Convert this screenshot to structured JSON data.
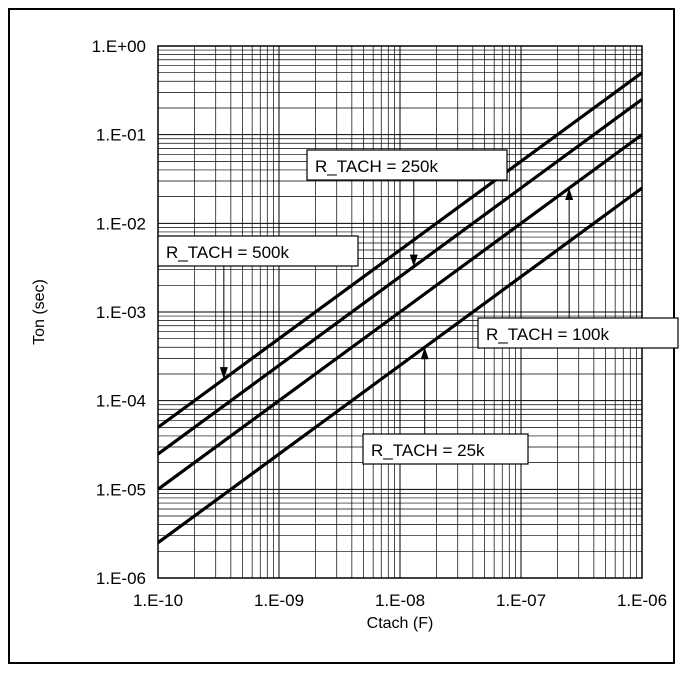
{
  "chart_data": {
    "type": "line",
    "title": "",
    "xlabel": "Ctach (F)",
    "ylabel": "Ton (sec)",
    "xscale": "log",
    "yscale": "log",
    "xlim": [
      1e-10,
      1e-06
    ],
    "ylim": [
      1e-06,
      1
    ],
    "grid": true,
    "x_tick_labels": [
      "1.E-10",
      "1.E-09",
      "1.E-08",
      "1.E-07",
      "1.E-06"
    ],
    "y_tick_labels": [
      "1.E-06",
      "1.E-05",
      "1.E-04",
      "1.E-03",
      "1.E-02",
      "1.E-01",
      "1.E+00"
    ],
    "series": [
      {
        "name": "R_TACH = 500k",
        "x": [
          1e-10,
          1e-06
        ],
        "y": [
          5e-05,
          0.5
        ]
      },
      {
        "name": "R_TACH = 250k",
        "x": [
          1e-10,
          1e-06
        ],
        "y": [
          2.5e-05,
          0.25
        ]
      },
      {
        "name": "R_TACH = 100k",
        "x": [
          1e-10,
          1e-06
        ],
        "y": [
          1e-05,
          0.1
        ]
      },
      {
        "name": "R_TACH = 25k",
        "x": [
          1e-10,
          1e-06
        ],
        "y": [
          2.5e-06,
          0.025
        ]
      }
    ],
    "annotations": [
      {
        "text": "R_TACH = 500k",
        "series": 0,
        "arrow_x": 3.5e-10
      },
      {
        "text": "R_TACH = 250k",
        "series": 1,
        "arrow_x": 1.3e-08
      },
      {
        "text": "R_TACH = 100k",
        "series": 2,
        "arrow_x": 2.5e-07
      },
      {
        "text": "R_TACH = 25k",
        "series": 3,
        "arrow_x": 1.6e-08
      }
    ],
    "colors": {
      "line": "#000000",
      "grid": "#000000",
      "background": "#ffffff"
    }
  }
}
